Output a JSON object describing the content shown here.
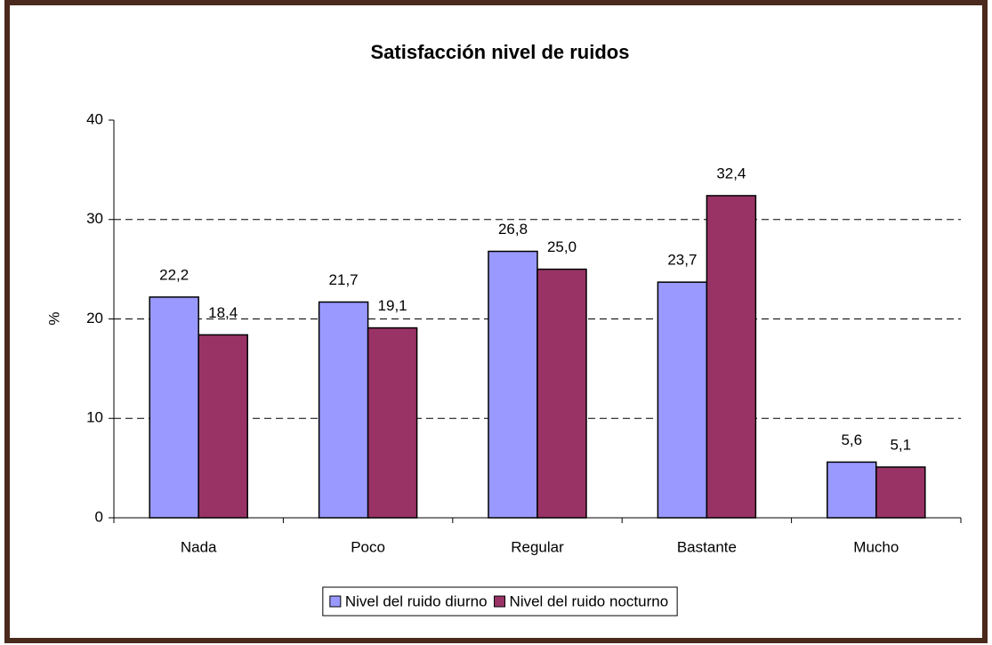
{
  "chart_data": {
    "type": "bar",
    "title": "Satisfacción nivel de ruidos",
    "y_label": "%",
    "categories": [
      "Nada",
      "Poco",
      "Regular",
      "Bastante",
      "Mucho"
    ],
    "series": [
      {
        "name": "Nivel del ruido diurno",
        "color": "#9999ff",
        "values": [
          22.2,
          21.7,
          26.8,
          23.7,
          5.6
        ],
        "value_labels": [
          "22,2",
          "21,7",
          "26,8",
          "23,7",
          "5,6"
        ]
      },
      {
        "name": "Nivel del ruido nocturno",
        "color": "#993366",
        "values": [
          18.4,
          19.1,
          25.0,
          32.4,
          5.1
        ],
        "value_labels": [
          "18,4",
          "19,1",
          "25,0",
          "32,4",
          "5,1"
        ]
      }
    ],
    "ylim": [
      0,
      40
    ],
    "yticks": [
      0,
      10,
      20,
      30,
      40
    ],
    "grid": true,
    "legend": "bottom"
  }
}
